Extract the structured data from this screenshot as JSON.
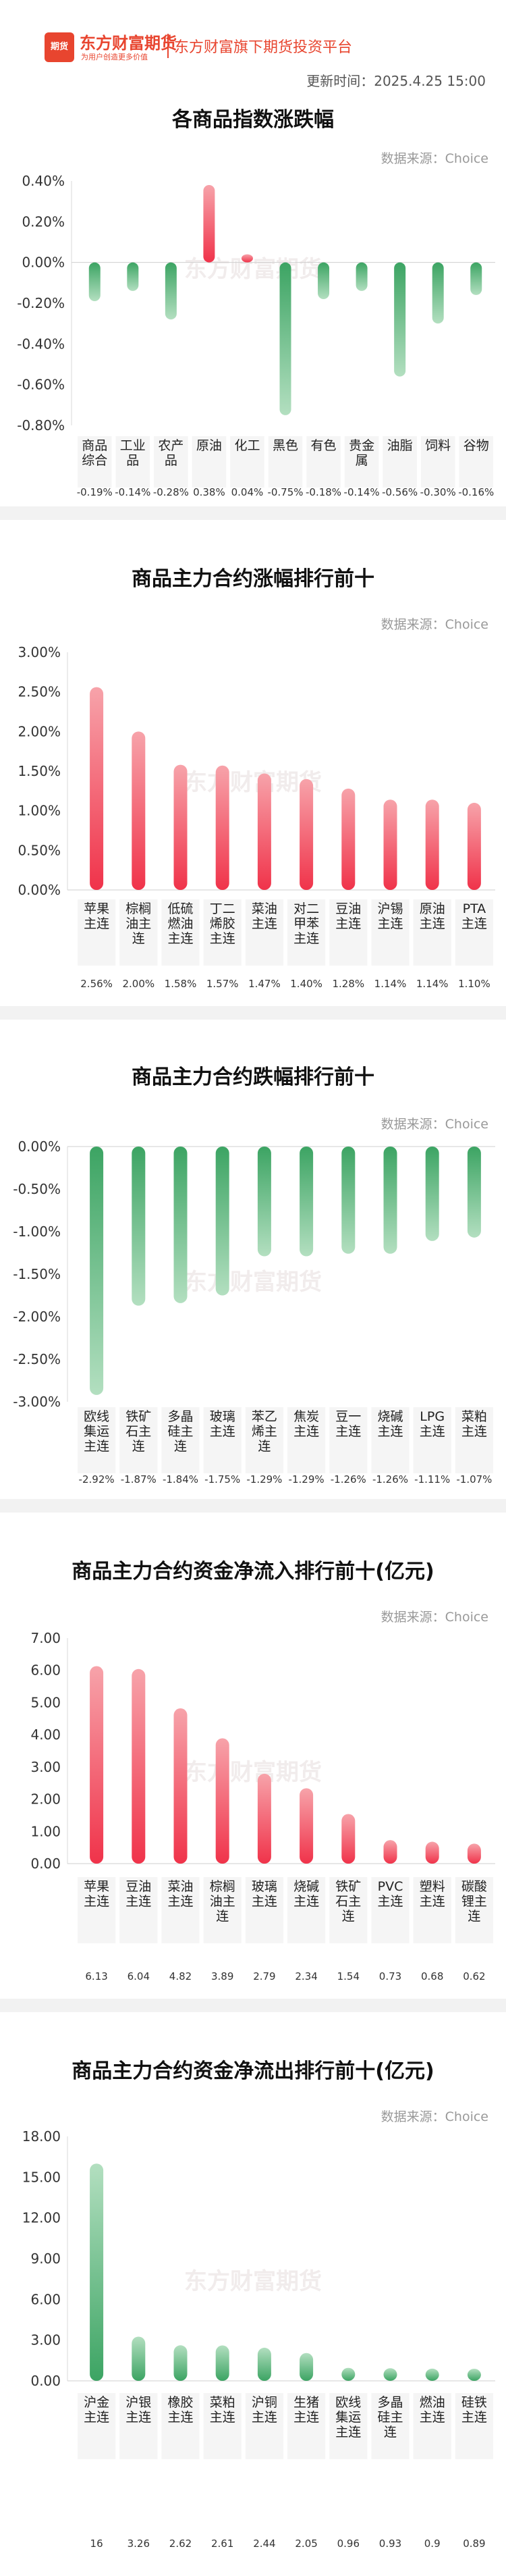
{
  "header": {
    "logo_mark": "期货",
    "logo_name": "东方财富期货",
    "logo_slogan": "为用户创造更多价值",
    "tagline": "东方财富旗下期货投资平台",
    "update_time": "更新时间：2025.4.25 15:00"
  },
  "source_label": "数据来源：Choice",
  "watermark": "东方财富期货",
  "colors": {
    "red_top": "#f7a3aa",
    "red_bottom": "#f0334a",
    "green_top": "#b3dfc0",
    "green_bottom": "#3ca463",
    "brand": "#e8452f"
  },
  "chart_data": [
    {
      "type": "bar",
      "title": "各商品指数涨跌幅",
      "categories": [
        "商品综合",
        "工业品",
        "农产品",
        "原油",
        "化工",
        "黑色",
        "有色",
        "贵金属",
        "油脂",
        "饲料",
        "谷物"
      ],
      "values": [
        -0.19,
        -0.14,
        -0.28,
        0.38,
        0.04,
        -0.75,
        -0.18,
        -0.14,
        -0.56,
        -0.3,
        -0.16
      ],
      "value_labels": [
        "-0.19%",
        "-0.14%",
        "-0.28%",
        "0.38%",
        "0.04%",
        "-0.75%",
        "-0.18%",
        "-0.14%",
        "-0.56%",
        "-0.30%",
        "-0.16%"
      ],
      "yticks": [
        "0.40%",
        "0.20%",
        "0.00%",
        "-0.20%",
        "-0.40%",
        "-0.60%",
        "-0.80%"
      ],
      "ylim": [
        -0.8,
        0.4
      ],
      "unit": "%",
      "grid": false
    },
    {
      "type": "bar",
      "title": "商品主力合约涨幅排行前十",
      "categories": [
        "苹果主连",
        "棕榈油主连",
        "低硫燃油主连",
        "丁二烯胶主连",
        "菜油主连",
        "对二甲苯主连",
        "豆油主连",
        "沪锡主连",
        "原油主连",
        "PTA主连"
      ],
      "values": [
        2.56,
        2.0,
        1.58,
        1.57,
        1.47,
        1.4,
        1.28,
        1.14,
        1.14,
        1.1
      ],
      "value_labels": [
        "2.56%",
        "2.00%",
        "1.58%",
        "1.57%",
        "1.47%",
        "1.40%",
        "1.28%",
        "1.14%",
        "1.14%",
        "1.10%"
      ],
      "yticks": [
        "3.00%",
        "2.50%",
        "2.00%",
        "1.50%",
        "1.00%",
        "0.50%",
        "0.00%"
      ],
      "ylim": [
        0,
        3
      ],
      "unit": "%",
      "grid": false
    },
    {
      "type": "bar",
      "title": "商品主力合约跌幅排行前十",
      "categories": [
        "欧线集运主连",
        "铁矿石主连",
        "多晶硅主连",
        "玻璃主连",
        "苯乙烯主连",
        "焦炭主连",
        "豆一主连",
        "烧碱主连",
        "LPG主连",
        "菜粕主连"
      ],
      "values": [
        -2.92,
        -1.87,
        -1.84,
        -1.75,
        -1.29,
        -1.29,
        -1.26,
        -1.26,
        -1.11,
        -1.07
      ],
      "value_labels": [
        "-2.92%",
        "-1.87%",
        "-1.84%",
        "-1.75%",
        "-1.29%",
        "-1.29%",
        "-1.26%",
        "-1.26%",
        "-1.11%",
        "-1.07%"
      ],
      "yticks": [
        "0.00%",
        "-0.50%",
        "-1.00%",
        "-1.50%",
        "-2.00%",
        "-2.50%",
        "-3.00%"
      ],
      "ylim": [
        -3,
        0
      ],
      "unit": "%",
      "grid": false
    },
    {
      "type": "bar",
      "title": "商品主力合约资金净流入排行前十(亿元)",
      "categories": [
        "苹果主连",
        "豆油主连",
        "菜油主连",
        "棕榈油主连",
        "玻璃主连",
        "烧碱主连",
        "铁矿石主连",
        "PVC主连",
        "塑料主连",
        "碳酸锂主连"
      ],
      "values": [
        6.13,
        6.04,
        4.82,
        3.89,
        2.79,
        2.34,
        1.54,
        0.73,
        0.68,
        0.62
      ],
      "value_labels": [
        "6.13",
        "6.04",
        "4.82",
        "3.89",
        "2.79",
        "2.34",
        "1.54",
        "0.73",
        "0.68",
        "0.62"
      ],
      "yticks": [
        "7.00",
        "6.00",
        "5.00",
        "4.00",
        "3.00",
        "2.00",
        "1.00",
        "0.00"
      ],
      "ylim": [
        0,
        7
      ],
      "unit": "亿元",
      "grid": false
    },
    {
      "type": "bar",
      "title": "商品主力合约资金净流出排行前十(亿元)",
      "categories": [
        "沪金主连",
        "沪银主连",
        "橡胶主连",
        "菜粕主连",
        "沪铜主连",
        "生猪主连",
        "欧线集运主连",
        "多晶硅主连",
        "燃油主连",
        "硅铁主连"
      ],
      "values": [
        16,
        3.26,
        2.62,
        2.61,
        2.44,
        2.05,
        0.96,
        0.93,
        0.9,
        0.89
      ],
      "value_labels": [
        "16",
        "3.26",
        "2.62",
        "2.61",
        "2.44",
        "2.05",
        "0.96",
        "0.93",
        "0.9",
        "0.89"
      ],
      "yticks": [
        "18.00",
        "15.00",
        "12.00",
        "9.00",
        "6.00",
        "3.00",
        "0.00"
      ],
      "ylim": [
        0,
        18
      ],
      "unit": "亿元",
      "grid": false
    }
  ]
}
